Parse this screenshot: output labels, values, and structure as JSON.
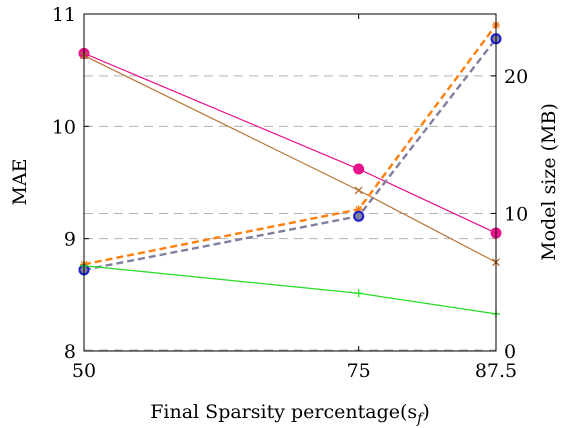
{
  "chart_data": {
    "type": "line",
    "xlabel": "Final Sparsity percentage(s",
    "xlabel_sub": "f",
    "xlabel_close": ")",
    "ylabel": "MAE",
    "y2label": "Model size (MB)",
    "x": [
      50,
      75,
      87.5
    ],
    "x_ticks": [
      "50",
      "75",
      "87.5"
    ],
    "ylim": [
      8,
      11
    ],
    "y_ticks": [
      "8",
      "9",
      "10",
      "11"
    ],
    "y2lim": [
      0,
      24.5
    ],
    "y2_ticks": [
      "0",
      "10",
      "20"
    ],
    "grid": "horizontal dashed",
    "series": [
      {
        "axis": "left",
        "color": "#e6138c",
        "marker": "circle",
        "dash": "solid",
        "values": [
          10.65,
          9.62,
          9.05
        ]
      },
      {
        "axis": "left",
        "color": "#b87333",
        "marker": "x",
        "dash": "solid",
        "values": [
          10.63,
          9.43,
          8.79
        ]
      },
      {
        "axis": "right",
        "color": "#ff7f0e",
        "marker": "star",
        "dash": "dashed",
        "values": [
          6.3,
          10.3,
          23.7
        ]
      },
      {
        "axis": "right",
        "color": "#7f7f9f",
        "marker": "circle",
        "dash": "dashed",
        "values": [
          5.9,
          9.8,
          22.7
        ]
      },
      {
        "axis": "right",
        "color": "#1f1fcf",
        "marker": "circle-open",
        "dash": "none",
        "values": [
          5.9,
          9.8,
          22.7
        ]
      },
      {
        "axis": "right",
        "color": "#22dd22",
        "marker": "plus",
        "dash": "solid",
        "values": [
          6.2,
          4.2,
          2.7
        ]
      }
    ]
  }
}
